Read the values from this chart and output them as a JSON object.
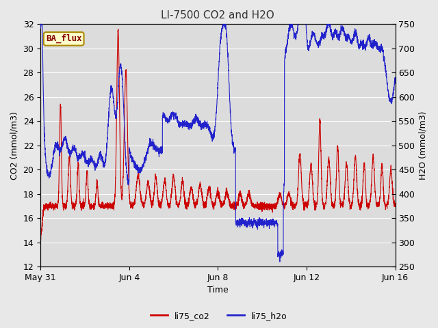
{
  "title": "LI-7500 CO2 and H2O",
  "xlabel": "Time",
  "ylabel_left": "CO2 (mmol/m3)",
  "ylabel_right": "H2O (mmol/m3)",
  "ylim_left": [
    12,
    32
  ],
  "ylim_right": [
    250,
    750
  ],
  "yticks_left": [
    12,
    14,
    16,
    18,
    20,
    22,
    24,
    26,
    28,
    30,
    32
  ],
  "yticks_right": [
    250,
    300,
    350,
    400,
    450,
    500,
    550,
    600,
    650,
    700,
    750
  ],
  "xtick_labels": [
    "May 31",
    "Jun 4",
    "Jun 8",
    "Jun 12",
    "Jun 16"
  ],
  "xtick_positions": [
    0,
    4,
    8,
    12,
    16
  ],
  "xlim": [
    0,
    16
  ],
  "legend_labels": [
    "li75_co2",
    "li75_h2o"
  ],
  "legend_colors": [
    "#cc0000",
    "#2222cc"
  ],
  "annotation_text": "BA_flux",
  "annotation_bg": "#ffffcc",
  "annotation_border": "#aa8800",
  "fig_bg_color": "#e8e8e8",
  "plot_bg_color": "#dcdcdc",
  "grid_color": "#ffffff",
  "title_fontsize": 11,
  "label_fontsize": 9,
  "tick_fontsize": 9
}
